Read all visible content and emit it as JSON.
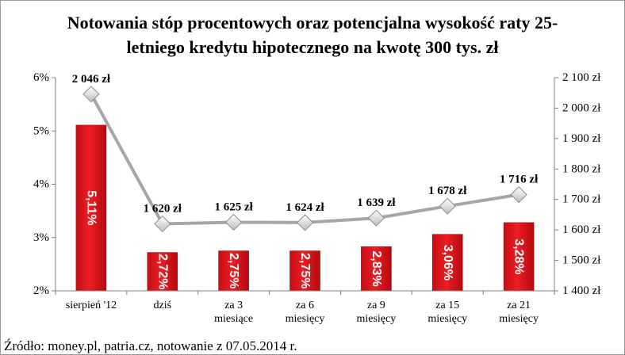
{
  "chart_data": {
    "type": "bar",
    "title_line1": "Notowania stóp procentowych oraz potencjalna wysokość raty 25-",
    "title_line2": "letniego kredytu hipotecznego na kwotę 300 tys. zł",
    "source": "Źródło: money.pl, patria.cz, notowanie z 07.05.2014 r.",
    "categories": [
      [
        "sierpień '12"
      ],
      [
        "dziś"
      ],
      [
        "za 3",
        "miesiące"
      ],
      [
        "za 6",
        "miesięcy"
      ],
      [
        "za 9",
        "miesięcy"
      ],
      [
        "za 15",
        "miesięcy"
      ],
      [
        "za 21",
        "miesięcy"
      ]
    ],
    "series": [
      {
        "type": "bar",
        "axis": "left",
        "values": [
          5.11,
          2.72,
          2.75,
          2.75,
          2.83,
          3.06,
          3.28
        ],
        "labels": [
          "5,11%",
          "2,72%",
          "2,75%",
          "2,75%",
          "2,83%",
          "3,06%",
          "3,28%"
        ],
        "color": "#e2141b"
      },
      {
        "type": "line",
        "axis": "right",
        "values": [
          2046,
          1620,
          1625,
          1624,
          1639,
          1678,
          1716
        ],
        "labels": [
          "2 046 zł",
          "1 620 zł",
          "1 625 zł",
          "1 624 zł",
          "1 639 zł",
          "1 678 zł",
          "1 716 zł"
        ],
        "color": "#a6a6a6"
      }
    ],
    "left_axis": {
      "ylim": [
        2,
        6
      ],
      "ticks": [
        2,
        3,
        4,
        5,
        6
      ],
      "tick_labels": [
        "2%",
        "3%",
        "4%",
        "5%",
        "6%"
      ]
    },
    "right_axis": {
      "ylim": [
        1400,
        2100
      ],
      "ticks": [
        1400,
        1500,
        1600,
        1700,
        1800,
        1900,
        2000,
        2100
      ],
      "tick_labels": [
        "1 400 zł",
        "1 500 zł",
        "1 600 zł",
        "1 700 zł",
        "1 800 zł",
        "1 900 zł",
        "2 000 zł",
        "2 100 zł"
      ]
    },
    "grid": false,
    "legend": "none"
  }
}
